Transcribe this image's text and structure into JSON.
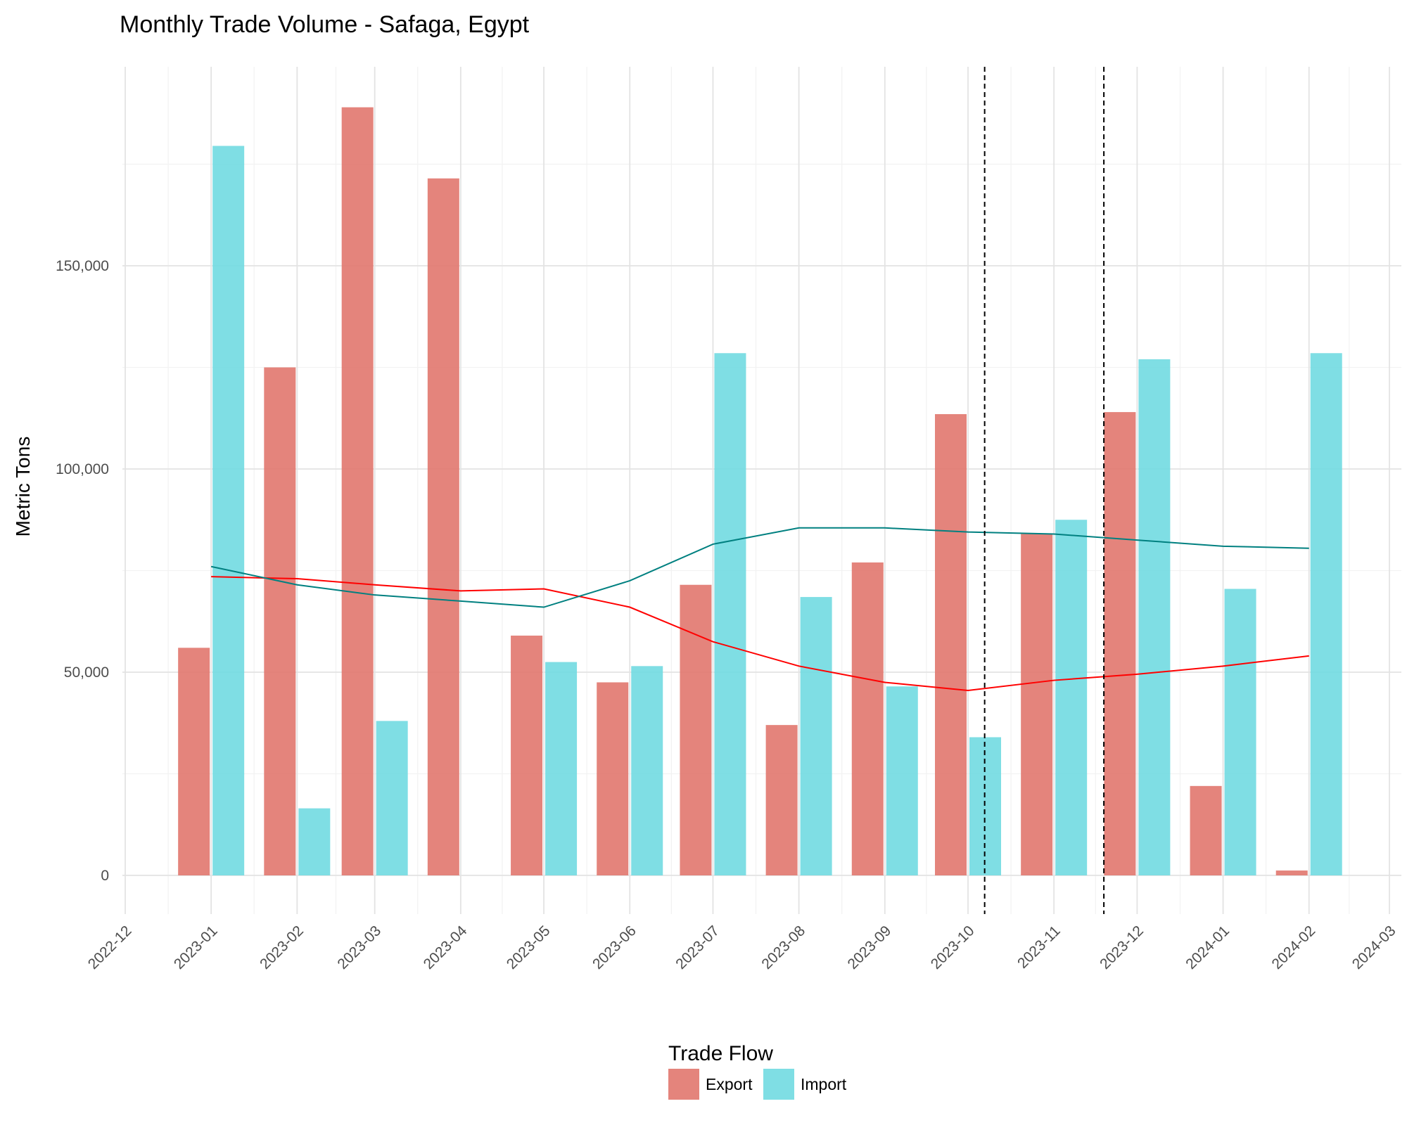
{
  "chart_data": {
    "type": "bar",
    "title": "Monthly Trade Volume - Safaga, Egypt",
    "xlabel": "",
    "ylabel": "Metric Tons",
    "ylim": [
      -10000,
      200000
    ],
    "yticks": [
      0,
      50000,
      100000,
      150000
    ],
    "ytick_labels": [
      "0",
      "50,000",
      "100,000",
      "150,000"
    ],
    "xtick_labels": [
      "2022-12",
      "2023-01",
      "2023-02",
      "2023-03",
      "2023-04",
      "2023-05",
      "2023-06",
      "2023-07",
      "2023-08",
      "2023-09",
      "2023-10",
      "2023-11",
      "2023-12",
      "2024-01",
      "2024-02",
      "2024-03"
    ],
    "xlim": [
      "2022-12-01",
      "2024-03-01"
    ],
    "categories": [
      "2023-01",
      "2023-02",
      "2023-03",
      "2023-04",
      "2023-05",
      "2023-06",
      "2023-07",
      "2023-08",
      "2023-09",
      "2023-10",
      "2023-11",
      "2023-12",
      "2024-01",
      "2024-02"
    ],
    "series": [
      {
        "name": "Export",
        "color": "#e0736a",
        "values": [
          56000,
          125000,
          189000,
          171500,
          59000,
          47500,
          71500,
          37000,
          77000,
          113500,
          84000,
          114000,
          22000,
          1200
        ]
      },
      {
        "name": "Import",
        "color": "#6dd9e0",
        "values": [
          179500,
          16500,
          38000,
          0,
          52500,
          51500,
          128500,
          68500,
          46500,
          34000,
          87500,
          127000,
          70500,
          128500
        ]
      }
    ],
    "trend_lines": [
      {
        "color": "#ff0000",
        "values": [
          73500,
          73000,
          71500,
          70000,
          70500,
          66000,
          57500,
          51500,
          47500,
          45500,
          48000,
          49500,
          51500,
          54000
        ]
      },
      {
        "color": "#008080",
        "values": [
          76000,
          71500,
          69000,
          67500,
          66000,
          72500,
          81500,
          85500,
          85500,
          84500,
          84000,
          82500,
          81000,
          80500
        ]
      }
    ],
    "vlines": [
      "2023-10-07",
      "2023-11-19"
    ],
    "grid": true,
    "legend": {
      "title": "Trade Flow",
      "position": "bottom",
      "entries": [
        "Export",
        "Import"
      ]
    }
  }
}
